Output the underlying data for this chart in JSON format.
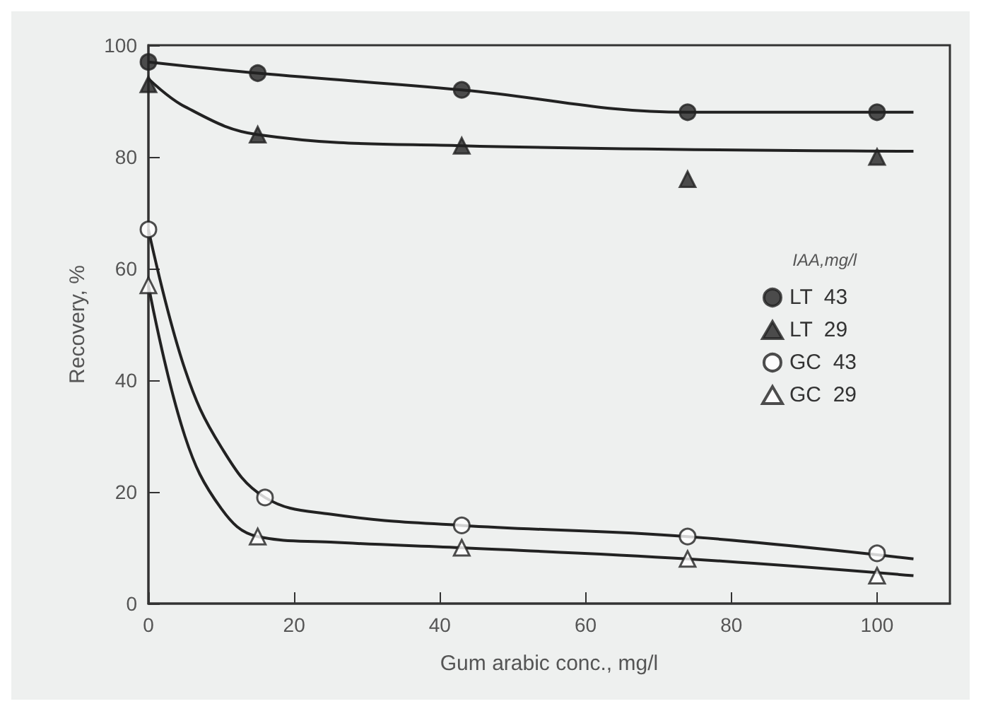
{
  "chart_data": {
    "type": "scatter",
    "xlabel": "Gum arabic conc., mg/l",
    "ylabel": "Recovery, %",
    "legend_title": "IAA,mg/l",
    "legend": "right",
    "grid": false,
    "xlim": [
      0,
      110
    ],
    "xticks": [
      0,
      20,
      40,
      60,
      80,
      100
    ],
    "ylim": [
      0,
      100
    ],
    "yticks": [
      0,
      20,
      40,
      60,
      80,
      100
    ],
    "series": [
      {
        "name": "LT  43",
        "marker": "circle",
        "color": "#222222",
        "x": [
          0,
          15,
          43,
          74,
          100
        ],
        "values": [
          97,
          95,
          92,
          88,
          88
        ]
      },
      {
        "name": "LT  29",
        "marker": "triangle",
        "color": "#222222",
        "x": [
          0,
          15,
          43,
          74,
          100
        ],
        "values": [
          93,
          84,
          82,
          76,
          80
        ]
      },
      {
        "name": "GC  43",
        "marker": "circle",
        "color": "#ffffff",
        "x": [
          0,
          16,
          43,
          74,
          100
        ],
        "values": [
          67,
          19,
          14,
          12,
          9
        ]
      },
      {
        "name": "GC  29",
        "marker": "triangle",
        "color": "#ffffff",
        "x": [
          0,
          15,
          43,
          74,
          100
        ],
        "values": [
          57,
          12,
          10,
          8,
          5
        ]
      },
      {
        "type": "line",
        "marker": "none",
        "color": "#222222",
        "x": [
          0,
          15,
          43,
          74,
          105
        ],
        "values": [
          97,
          95,
          92,
          88,
          88
        ]
      },
      {
        "type": "line",
        "marker": "none",
        "color": "#222222",
        "x": [
          0,
          5,
          15,
          43,
          105
        ],
        "values": [
          94,
          89,
          84,
          82,
          81
        ]
      },
      {
        "type": "line",
        "marker": "none",
        "color": "#222222",
        "x": [
          0,
          5,
          10,
          16,
          25,
          43,
          74,
          105
        ],
        "values": [
          67,
          42,
          28,
          19,
          16,
          14,
          12,
          8
        ]
      },
      {
        "type": "line",
        "marker": "none",
        "color": "#222222",
        "x": [
          0,
          5,
          10,
          15,
          25,
          43,
          74,
          105
        ],
        "values": [
          57,
          30,
          17,
          12,
          11,
          10,
          8,
          5
        ]
      }
    ]
  }
}
